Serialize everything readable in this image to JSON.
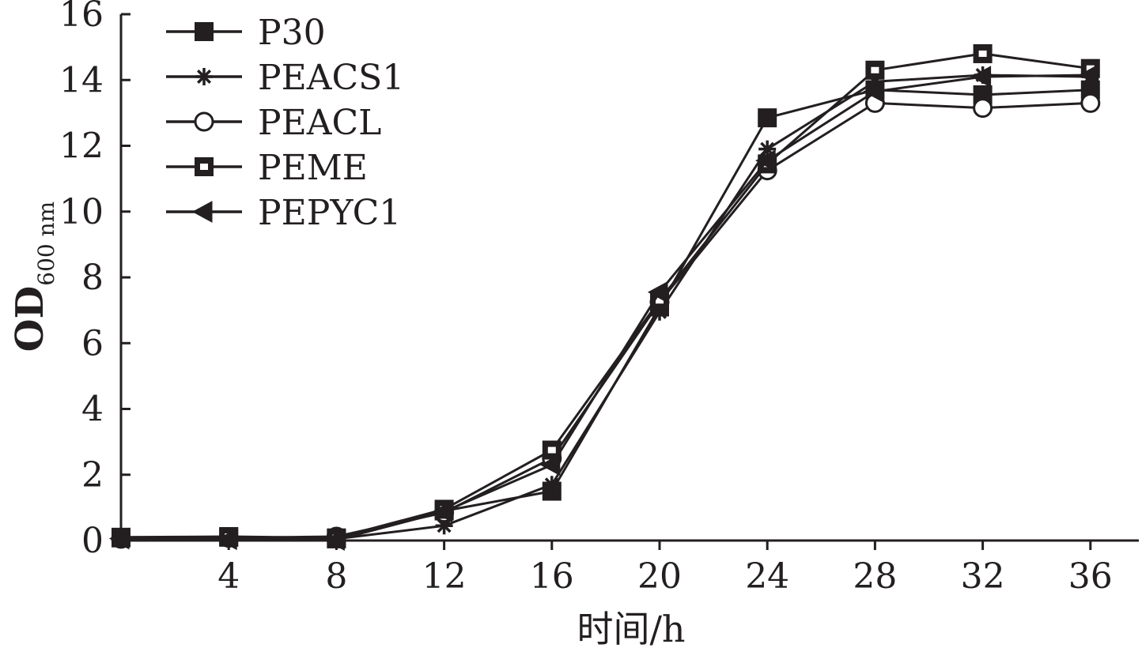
{
  "chart_data": {
    "type": "line",
    "title": "",
    "xlabel": "时间/h",
    "ylabel": {
      "main": "OD",
      "subscript": "600 nm"
    },
    "x": [
      0,
      4,
      8,
      12,
      16,
      20,
      24,
      28,
      32,
      36
    ],
    "x_ticks": [
      4,
      8,
      12,
      16,
      20,
      24,
      28,
      32,
      36
    ],
    "x_tick_labels": [
      "4",
      "8",
      "12",
      "16",
      "20",
      "24",
      "28",
      "32",
      "36"
    ],
    "xlim": [
      0,
      38
    ],
    "y_ticks": [
      0,
      2,
      4,
      6,
      8,
      10,
      12,
      14,
      16
    ],
    "y_tick_labels": [
      "0",
      "2",
      "4",
      "6",
      "8",
      "10",
      "12",
      "14",
      "16"
    ],
    "ylim": [
      0,
      16
    ],
    "grid": false,
    "legend_position": "top-left",
    "line_color": "#231f20",
    "series": [
      {
        "name": "P30",
        "marker": "filled-square",
        "values": [
          0.08,
          0.1,
          0.05,
          0.9,
          1.5,
          7.1,
          12.85,
          13.7,
          13.55,
          13.7
        ]
      },
      {
        "name": "PEACS1",
        "marker": "asterisk",
        "values": [
          0.05,
          0.05,
          0.05,
          0.45,
          1.7,
          6.95,
          11.9,
          13.95,
          14.15,
          14.1
        ]
      },
      {
        "name": "PEACL",
        "marker": "open-circle",
        "values": [
          0.05,
          0.08,
          0.12,
          0.85,
          2.5,
          7.25,
          11.25,
          13.3,
          13.15,
          13.3
        ]
      },
      {
        "name": "PEME",
        "marker": "framed-square",
        "values": [
          0.1,
          0.12,
          0.08,
          0.95,
          2.75,
          7.3,
          11.45,
          14.3,
          14.8,
          14.35
        ]
      },
      {
        "name": "PEPYC1",
        "marker": "left-triangle",
        "values": [
          0.06,
          0.04,
          0.02,
          0.88,
          2.3,
          7.55,
          11.55,
          13.65,
          14.1,
          14.15
        ]
      }
    ]
  }
}
